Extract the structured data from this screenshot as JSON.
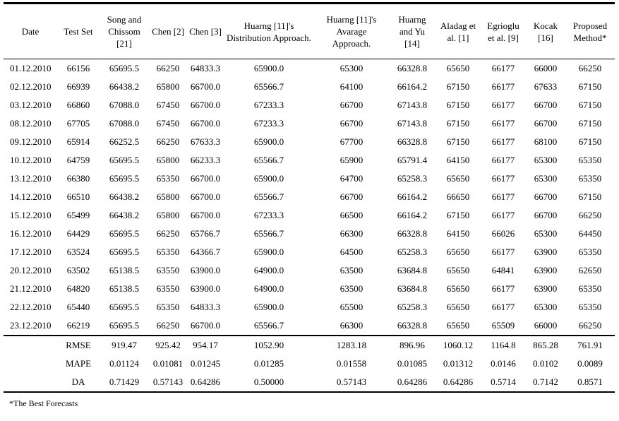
{
  "table": {
    "columns": [
      "Date",
      "Test Set",
      "Song and Chissom [21]",
      "Chen [2]",
      "Chen [3]",
      "Huarng [11]'s Distribution Approach.",
      "Huarng [11]'s Avarage Approach.",
      "Huarng and Yu [14]",
      "Aladag et al. [1]",
      "Egrioglu et al. [9]",
      "Kocak [16]",
      "Proposed Method*"
    ],
    "rows": [
      [
        "01.12.2010",
        "66156",
        "65695.5",
        "66250",
        "64833.3",
        "65900.0",
        "65300",
        "66328.8",
        "65650",
        "66177",
        "66000",
        "66250"
      ],
      [
        "02.12.2010",
        "66939",
        "66438.2",
        "65800",
        "66700.0",
        "65566.7",
        "64100",
        "66164.2",
        "67150",
        "66177",
        "67633",
        "67150"
      ],
      [
        "03.12.2010",
        "66860",
        "67088.0",
        "67450",
        "66700.0",
        "67233.3",
        "66700",
        "67143.8",
        "67150",
        "66177",
        "66700",
        "67150"
      ],
      [
        "08.12.2010",
        "67705",
        "67088.0",
        "67450",
        "66700.0",
        "67233.3",
        "66700",
        "67143.8",
        "67150",
        "66177",
        "66700",
        "67150"
      ],
      [
        "09.12.2010",
        "65914",
        "66252.5",
        "66250",
        "67633.3",
        "65900.0",
        "67700",
        "66328.8",
        "67150",
        "66177",
        "68100",
        "67150"
      ],
      [
        "10.12.2010",
        "64759",
        "65695.5",
        "65800",
        "66233.3",
        "65566.7",
        "65900",
        "65791.4",
        "64150",
        "66177",
        "65300",
        "65350"
      ],
      [
        "13.12.2010",
        "66380",
        "65695.5",
        "65350",
        "66700.0",
        "65900.0",
        "64700",
        "65258.3",
        "65650",
        "66177",
        "65300",
        "65350"
      ],
      [
        "14.12.2010",
        "66510",
        "66438.2",
        "65800",
        "66700.0",
        "65566.7",
        "66700",
        "66164.2",
        "66650",
        "66177",
        "66700",
        "67150"
      ],
      [
        "15.12.2010",
        "65499",
        "66438.2",
        "65800",
        "66700.0",
        "67233.3",
        "66500",
        "66164.2",
        "67150",
        "66177",
        "66700",
        "66250"
      ],
      [
        "16.12.2010",
        "64429",
        "65695.5",
        "66250",
        "65766.7",
        "65566.7",
        "66300",
        "66328.8",
        "64150",
        "66026",
        "65300",
        "64450"
      ],
      [
        "17.12.2010",
        "63524",
        "65695.5",
        "65350",
        "64366.7",
        "65900.0",
        "64500",
        "65258.3",
        "65650",
        "66177",
        "63900",
        "65350"
      ],
      [
        "20.12.2010",
        "63502",
        "65138.5",
        "63550",
        "63900.0",
        "64900.0",
        "63500",
        "63684.8",
        "65650",
        "64841",
        "63900",
        "62650"
      ],
      [
        "21.12.2010",
        "64820",
        "65138.5",
        "63550",
        "63900.0",
        "64900.0",
        "63500",
        "63684.8",
        "65650",
        "66177",
        "63900",
        "65350"
      ],
      [
        "22.12.2010",
        "65440",
        "65695.5",
        "65350",
        "64833.3",
        "65900.0",
        "65500",
        "65258.3",
        "65650",
        "66177",
        "65300",
        "65350"
      ],
      [
        "23.12.2010",
        "66219",
        "65695.5",
        "66250",
        "66700.0",
        "65566.7",
        "66300",
        "66328.8",
        "65650",
        "65509",
        "66000",
        "66250"
      ]
    ],
    "summary": [
      {
        "label": "RMSE",
        "values": [
          "919.47",
          "925.42",
          "954.17",
          "1052.90",
          "1283.18",
          "896.96",
          "1060.12",
          "1164.8",
          "865.28",
          "761.91"
        ]
      },
      {
        "label": "MAPE",
        "values": [
          "0.01124",
          "0.01081",
          "0.01245",
          "0.01285",
          "0.01558",
          "0.01085",
          "0.01312",
          "0.0146",
          "0.0102",
          "0.0089"
        ]
      },
      {
        "label": "DA",
        "values": [
          "0.71429",
          "0.57143",
          "0.64286",
          "0.50000",
          "0.57143",
          "0.64286",
          "0.64286",
          "0.5714",
          "0.7142",
          "0.8571"
        ]
      }
    ]
  },
  "footnote": "*The Best Forecasts"
}
